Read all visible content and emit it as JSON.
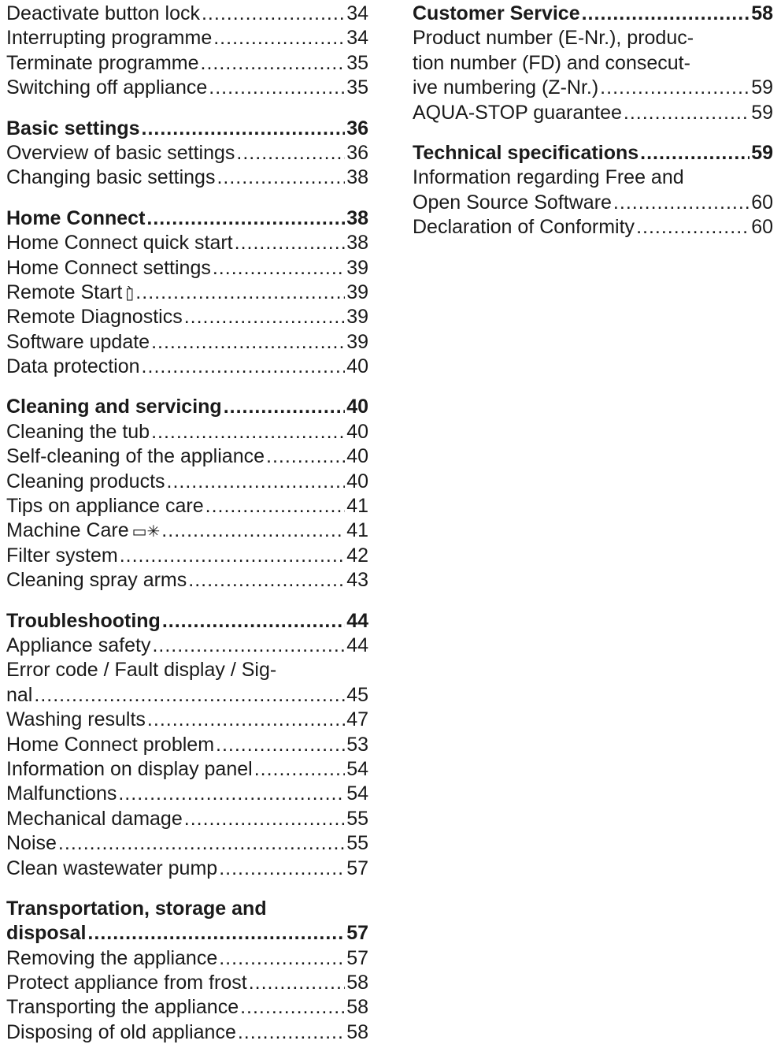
{
  "left": {
    "top_entries": [
      {
        "title": "Deactivate button lock",
        "page": "34"
      },
      {
        "title": "Interrupting programme",
        "page": "34"
      },
      {
        "title": "Terminate programme",
        "page": "35"
      },
      {
        "title": "Switching off appliance",
        "page": "35"
      }
    ],
    "basic_settings": {
      "heading": {
        "title": "Basic settings",
        "page": "36"
      },
      "entries": [
        {
          "title": "Overview of basic settings",
          "page": "36"
        },
        {
          "title": "Changing basic settings",
          "page": "38"
        }
      ]
    },
    "home_connect": {
      "heading": {
        "title": "Home Connect",
        "page": "38"
      },
      "entries": [
        {
          "title": "Home Connect quick start",
          "page": "38"
        },
        {
          "title": "Home Connect settings",
          "page": "39"
        },
        {
          "title": "Remote Start",
          "page": "39",
          "icon": "remote-start-icon",
          "glyph": "▯̀"
        },
        {
          "title": "Remote Diagnostics",
          "page": "39"
        },
        {
          "title": "Software update",
          "page": "39"
        },
        {
          "title": "Data protection",
          "page": "40"
        }
      ]
    },
    "cleaning": {
      "heading": {
        "title": "Cleaning and servicing",
        "page": "40"
      },
      "entries": [
        {
          "title": "Cleaning the tub",
          "page": "40"
        },
        {
          "title": "Self-cleaning of the appliance",
          "page": "40"
        },
        {
          "title": "Cleaning products",
          "page": "40"
        },
        {
          "title": "Tips on appliance care",
          "page": "41"
        },
        {
          "title": "Machine Care",
          "page": "41",
          "icon": "machine-care-icon",
          "glyph": "▭✳"
        },
        {
          "title": "Filter system",
          "page": "42"
        },
        {
          "title": "Cleaning spray arms",
          "page": "43"
        }
      ]
    },
    "troubleshooting": {
      "heading": {
        "title": "Troubleshooting",
        "page": "44"
      },
      "entries": [
        {
          "title": "Appliance safety",
          "page": "44"
        },
        {
          "title_line1": "Error code / Fault display / Sig-",
          "title_line2": "nal",
          "page": "45"
        },
        {
          "title": "Washing results",
          "page": "47"
        },
        {
          "title": "Home Connect problem",
          "page": "53"
        },
        {
          "title": "Information on display panel",
          "page": "54"
        },
        {
          "title": "Malfunctions",
          "page": "54"
        },
        {
          "title": "Mechanical damage",
          "page": "55"
        },
        {
          "title": "Noise",
          "page": "55"
        },
        {
          "title": "Clean wastewater pump",
          "page": "57"
        }
      ]
    },
    "transport": {
      "heading": {
        "title_line1": "Transportation, storage and",
        "title_line2": "disposal",
        "page": "57"
      },
      "entries": [
        {
          "title": "Removing the appliance",
          "page": "57"
        },
        {
          "title": "Protect appliance from frost",
          "page": "58"
        },
        {
          "title": "Transporting the appliance",
          "page": "58"
        },
        {
          "title": "Disposing of old appliance",
          "page": "58"
        }
      ]
    }
  },
  "right": {
    "customer_service": {
      "heading": {
        "title": "Customer Service",
        "page": "58"
      },
      "entries": [
        {
          "title_line1": "Product number (E-Nr.), produc-",
          "title_line2": "tion number (FD) and consecut-",
          "title_line3": "ive numbering (Z-Nr.)",
          "page": "59"
        },
        {
          "title": "AQUA-STOP guarantee",
          "page": "59"
        }
      ]
    },
    "technical": {
      "heading": {
        "title": "Technical specifications",
        "page": "59"
      },
      "entries": [
        {
          "title_line1": "Information regarding Free and",
          "title_line2": "Open Source Software",
          "page": "60"
        },
        {
          "title": "Declaration of Conformity",
          "page": "60"
        }
      ]
    }
  }
}
